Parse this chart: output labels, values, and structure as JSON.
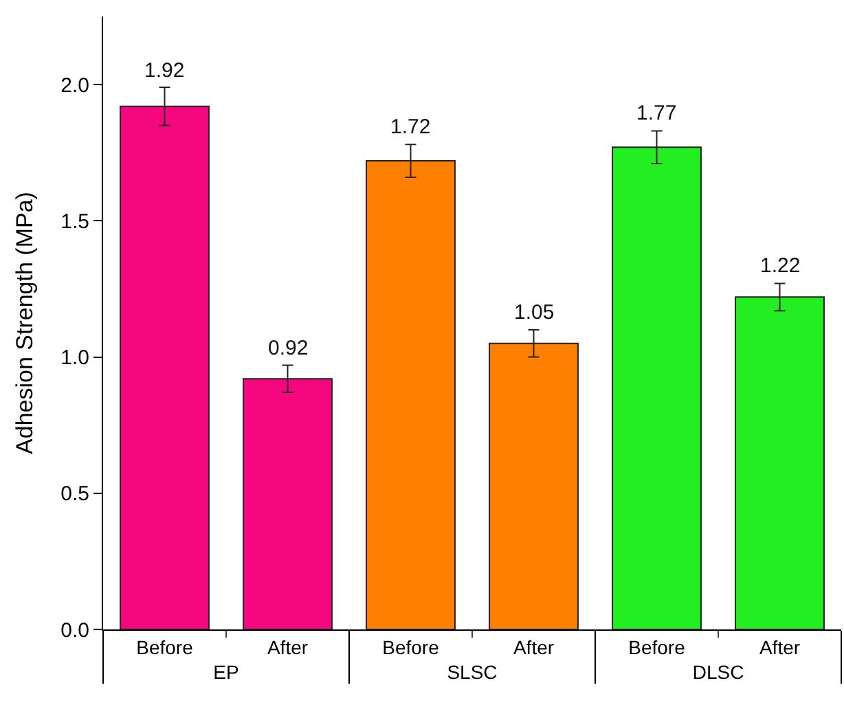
{
  "chart_data": {
    "type": "bar",
    "ylabel": "Adhesion Strength (MPa)",
    "categories": [
      "Before",
      "After",
      "Before",
      "After",
      "Before",
      "After"
    ],
    "values": [
      1.92,
      0.92,
      1.72,
      1.05,
      1.77,
      1.22
    ],
    "errors": [
      0.07,
      0.05,
      0.06,
      0.05,
      0.06,
      0.05
    ],
    "colors": [
      "#f5077f",
      "#f5077f",
      "#ff8000",
      "#ff8000",
      "#22ee22",
      "#22ee22"
    ],
    "annotations": [
      "EP",
      "SLSC",
      "DLSC"
    ],
    "ylim": [
      0,
      2.25
    ],
    "yticks": [
      {
        "value": 0,
        "label": "0.0"
      },
      {
        "value": 0.5,
        "label": "0.5"
      },
      {
        "value": 1,
        "label": "1.0"
      },
      {
        "value": 1.5,
        "label": "1.5"
      },
      {
        "value": 2,
        "label": "2.0"
      }
    ],
    "data_labels": true,
    "legend": false
  }
}
